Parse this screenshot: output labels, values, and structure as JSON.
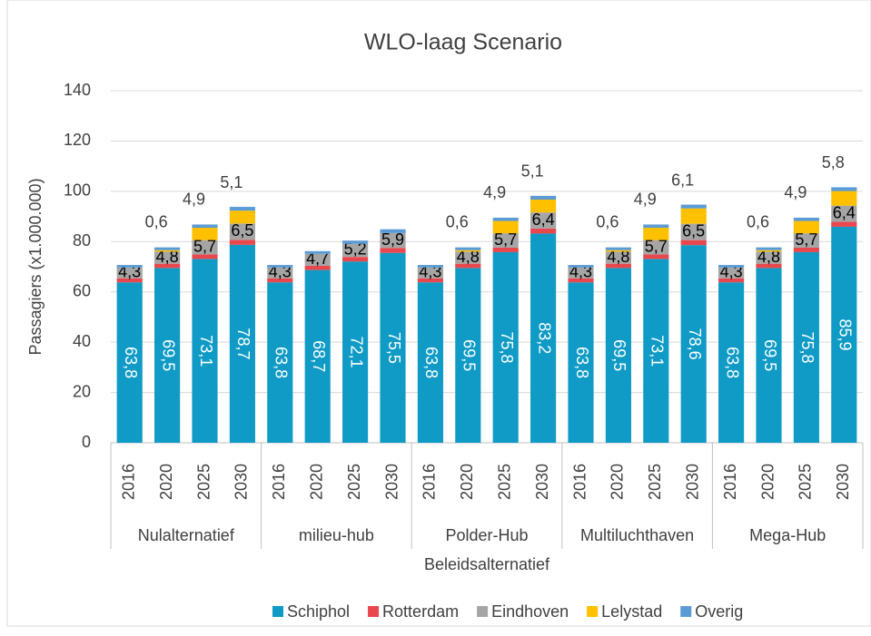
{
  "chart_data": {
    "type": "stacked-bar",
    "title": "WLO-laag Scenario",
    "y_label": "Passagiers (x1.000.000)",
    "x_label": "Beleidsalternatief",
    "groups": [
      "Nulalternatief",
      "milieu-hub",
      "Polder-Hub",
      "Multiluchthaven",
      "Mega-Hub"
    ],
    "categories": [
      "2016",
      "2020",
      "2025",
      "2030",
      "2016",
      "2020",
      "2025",
      "2030",
      "2016",
      "2020",
      "2025",
      "2030",
      "2016",
      "2020",
      "2025",
      "2030",
      "2016",
      "2020",
      "2025",
      "2030"
    ],
    "ylim": [
      0,
      140
    ],
    "yticks": [
      0,
      20,
      40,
      60,
      80,
      100,
      120,
      140
    ],
    "grid": true,
    "legend": "bottom",
    "series": [
      {
        "name": "Schiphol",
        "color": "#0f9bc6",
        "values": [
          63.8,
          69.5,
          73.1,
          78.7,
          63.8,
          68.7,
          72.1,
          75.5,
          63.8,
          69.5,
          75.8,
          83.2,
          63.8,
          69.5,
          73.1,
          78.6,
          63.8,
          69.5,
          75.8,
          85.9
        ],
        "value_labels": [
          "63,8",
          "69,5",
          "73,1",
          "78,7",
          "63,8",
          "68,7",
          "72,1",
          "75,5",
          "63,8",
          "69,5",
          "75,8",
          "83,2",
          "63,8",
          "69,5",
          "73,1",
          "78,6",
          "63,8",
          "69,5",
          "75,8",
          "85,9"
        ]
      },
      {
        "name": "Rotterdam",
        "color": "#e8474e",
        "values": [
          1.6,
          1.7,
          1.8,
          2.0,
          1.6,
          1.7,
          1.8,
          2.0,
          1.6,
          1.7,
          1.8,
          2.0,
          1.6,
          1.7,
          1.8,
          2.0,
          1.6,
          1.7,
          1.8,
          2.0
        ]
      },
      {
        "name": "Eindhoven",
        "color": "#a5a5a5",
        "values": [
          4.3,
          4.8,
          5.7,
          6.5,
          4.3,
          4.7,
          5.2,
          5.9,
          4.3,
          4.8,
          5.7,
          6.4,
          4.3,
          4.8,
          5.7,
          6.5,
          4.3,
          4.8,
          5.7,
          6.4
        ],
        "value_labels": [
          "4,3",
          "4,8",
          "5,7",
          "6,5",
          "4,3",
          "4,7",
          "5,2",
          "5,9",
          "4,3",
          "4,8",
          "5,7",
          "6,4",
          "4,3",
          "4,8",
          "5,7",
          "6,5",
          "4,3",
          "4,8",
          "5,7",
          "6,4"
        ]
      },
      {
        "name": "Lelystad",
        "color": "#ffc000",
        "values": [
          0,
          0.6,
          4.9,
          5.1,
          0,
          0,
          0,
          0,
          0,
          0.6,
          4.9,
          5.1,
          0,
          0.6,
          4.9,
          6.1,
          0,
          0.6,
          4.9,
          5.8
        ],
        "value_labels": [
          null,
          "0,6",
          "4,9",
          "5,1",
          null,
          null,
          null,
          null,
          null,
          "0,6",
          "4,9",
          "5,1",
          null,
          "0,6",
          "4,9",
          "6,1",
          null,
          "0,6",
          "4,9",
          "5,8"
        ]
      },
      {
        "name": "Overig",
        "color": "#5b9bd5",
        "values": [
          1.0,
          1.1,
          1.3,
          1.5,
          1.0,
          1.1,
          1.3,
          1.5,
          1.0,
          1.1,
          1.3,
          1.5,
          1.0,
          1.1,
          1.3,
          1.5,
          1.0,
          1.1,
          1.3,
          1.5
        ]
      }
    ]
  }
}
